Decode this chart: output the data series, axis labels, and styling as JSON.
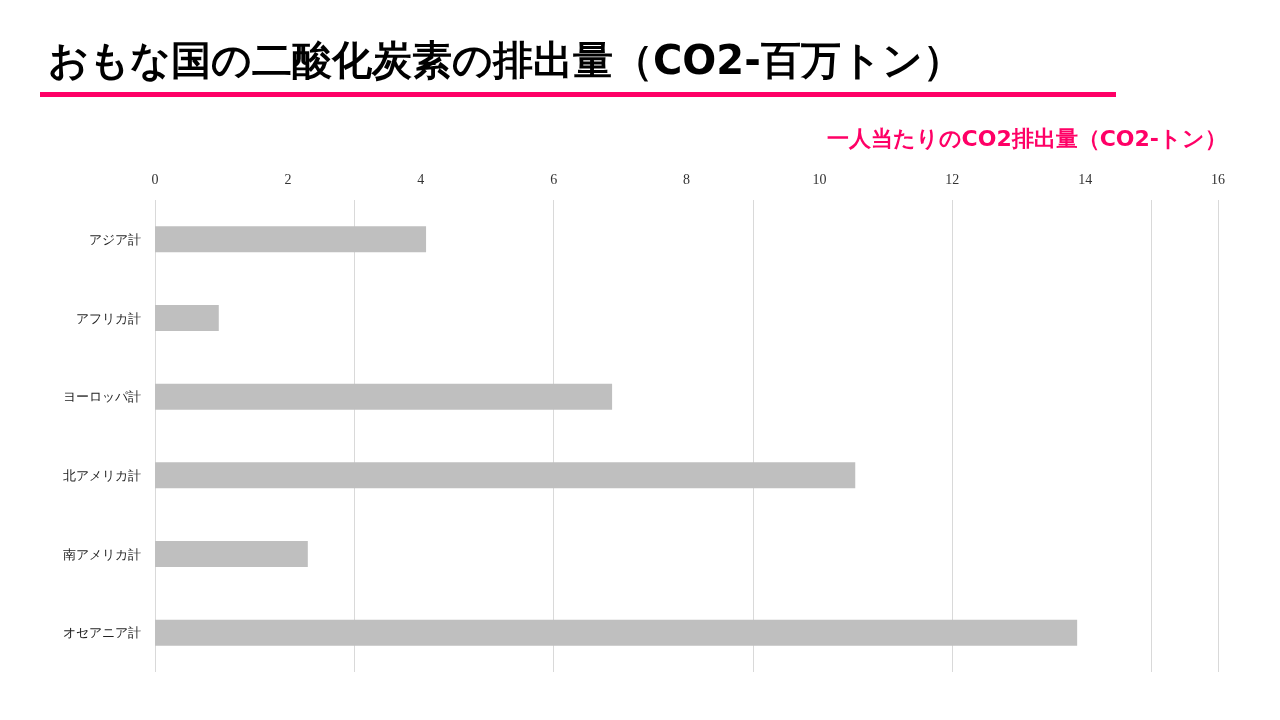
{
  "chart_data": {
    "type": "bar",
    "orientation": "horizontal",
    "title": "おもな国の二酸化炭素の排出量（CO2-百万トン）",
    "xlabel": "一人当たりのCO2排出量（CO2-トン）",
    "categories": [
      "アジア計",
      "アフリカ計",
      "ヨーロッパ計",
      "北アメリカ計",
      "南アメリカ計",
      "オセアニア計"
    ],
    "values": [
      4.08,
      0.96,
      6.88,
      10.54,
      2.3,
      13.88
    ],
    "color": "#bfbfbf",
    "xlim": [
      0,
      16
    ],
    "xticks": [
      0,
      2,
      4,
      6,
      8,
      10,
      12,
      14,
      16
    ],
    "grid": "x"
  }
}
